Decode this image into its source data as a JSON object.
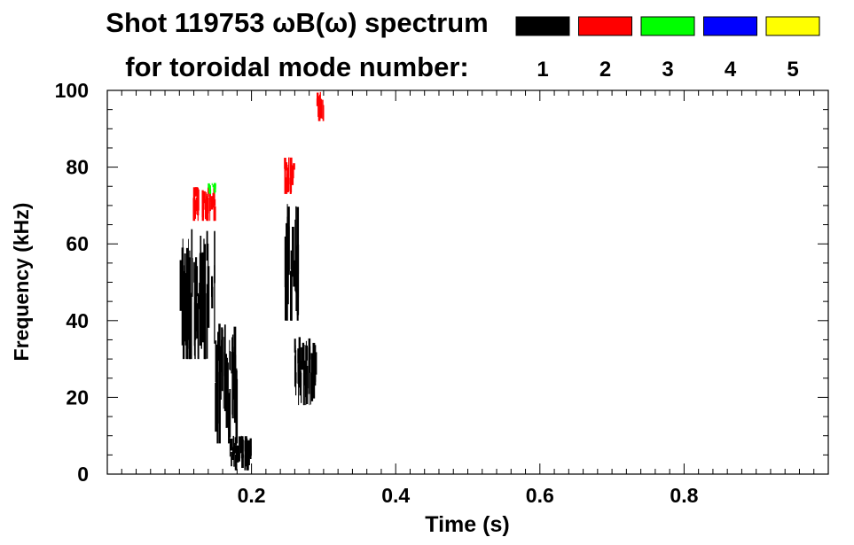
{
  "title_line1": "Shot 119753 ωB(ω) spectrum",
  "title_line2": "for toroidal mode number:",
  "legend": [
    {
      "label": "1",
      "color": "#000000"
    },
    {
      "label": "2",
      "color": "#ff0000"
    },
    {
      "label": "3",
      "color": "#00ff00"
    },
    {
      "label": "4",
      "color": "#0000ff"
    },
    {
      "label": "5",
      "color": "#ffff00"
    }
  ],
  "chart_data": {
    "type": "heatmap",
    "xlabel": "Time (s)",
    "ylabel": "Frequency (kHz)",
    "xlim": [
      0,
      1.0
    ],
    "ylim": [
      0,
      100
    ],
    "x_ticks": [
      "0.2",
      "0.4",
      "0.6",
      "0.8"
    ],
    "x_tick_values": [
      0.2,
      0.4,
      0.6,
      0.8
    ],
    "y_ticks": [
      "0",
      "20",
      "40",
      "60",
      "80",
      "100"
    ],
    "y_tick_values": [
      0,
      20,
      40,
      60,
      80,
      100
    ],
    "series": [
      {
        "name": "1",
        "color": "#000000",
        "regions": [
          {
            "t": [
              0.1,
              0.15
            ],
            "f": [
              30,
              64
            ]
          },
          {
            "t": [
              0.15,
              0.18
            ],
            "f": [
              8,
              40
            ]
          },
          {
            "t": [
              0.17,
              0.2
            ],
            "f": [
              1,
              10
            ]
          },
          {
            "t": [
              0.245,
              0.265
            ],
            "f": [
              40,
              72
            ]
          },
          {
            "t": [
              0.26,
              0.29
            ],
            "f": [
              18,
              36
            ]
          }
        ]
      },
      {
        "name": "2",
        "color": "#ff0000",
        "regions": [
          {
            "t": [
              0.12,
              0.15
            ],
            "f": [
              66,
              75
            ]
          },
          {
            "t": [
              0.245,
              0.26
            ],
            "f": [
              73,
              83
            ]
          },
          {
            "t": [
              0.29,
              0.3
            ],
            "f": [
              92,
              100
            ]
          }
        ]
      },
      {
        "name": "3",
        "color": "#00ff00",
        "regions": [
          {
            "t": [
              0.14,
              0.15
            ],
            "f": [
              73,
              76
            ]
          }
        ]
      }
    ]
  }
}
